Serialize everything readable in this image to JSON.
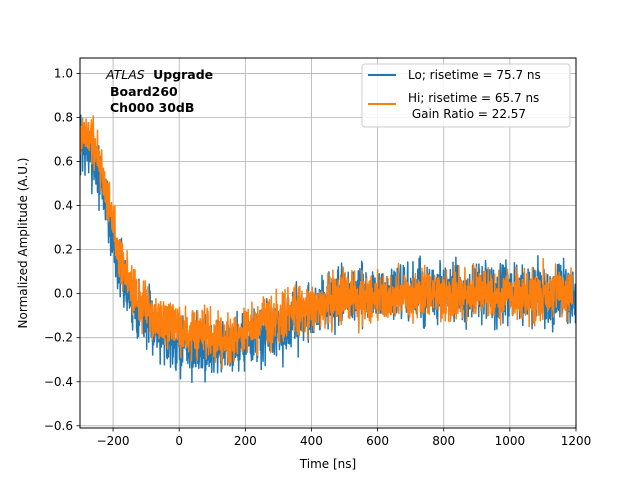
{
  "chart_data": {
    "type": "line",
    "xlabel": "Time [ns]",
    "ylabel": "Normalized Amplitude (A.U.)",
    "xlim": [
      -300,
      1200
    ],
    "ylim": [
      -0.61,
      1.07
    ],
    "xticks": [
      -200,
      0,
      200,
      400,
      600,
      800,
      1000,
      1200
    ],
    "yticks": [
      -0.6,
      -0.4,
      -0.2,
      0.0,
      0.2,
      0.4,
      0.6,
      0.8,
      1.0
    ],
    "xtick_labels": [
      "−200",
      "0",
      "200",
      "400",
      "600",
      "800",
      "1000",
      "1200"
    ],
    "ytick_labels": [
      "−0.6",
      "−0.4",
      "−0.2",
      "0.0",
      "0.2",
      "0.4",
      "0.6",
      "0.8",
      "1.0"
    ],
    "grid": true,
    "legend_position": "upper-right",
    "annotation": {
      "italic": "ATLAS",
      "bold": "Upgrade",
      "line2": "Board260",
      "line3": "Ch000 30dB"
    },
    "series": [
      {
        "name": "Lo; risetime = 75.7 ns",
        "color": "#1f77b4",
        "noise": 0.1,
        "envelope": [
          [
            -300,
            0.68
          ],
          [
            -260,
            0.62
          ],
          [
            -230,
            0.48
          ],
          [
            -210,
            0.32
          ],
          [
            -190,
            0.17
          ],
          [
            -160,
            0.02
          ],
          [
            -120,
            -0.08
          ],
          [
            -60,
            -0.16
          ],
          [
            0,
            -0.22
          ],
          [
            80,
            -0.25
          ],
          [
            150,
            -0.23
          ],
          [
            220,
            -0.2
          ],
          [
            300,
            -0.16
          ],
          [
            380,
            -0.09
          ],
          [
            450,
            -0.04
          ],
          [
            550,
            -0.01
          ],
          [
            700,
            0.0
          ],
          [
            900,
            0.0
          ],
          [
            1200,
            0.0
          ]
        ],
        "x_end": 1200,
        "seed": 7
      },
      {
        "name": "Hi; risetime = 65.7 ns",
        "name_line2": " Gain Ratio = 22.57",
        "color": "#ff7f0e",
        "noise": 0.085,
        "envelope": [
          [
            -300,
            0.72
          ],
          [
            -270,
            0.72
          ],
          [
            -240,
            0.6
          ],
          [
            -215,
            0.42
          ],
          [
            -190,
            0.25
          ],
          [
            -160,
            0.08
          ],
          [
            -120,
            -0.04
          ],
          [
            -60,
            -0.12
          ],
          [
            0,
            -0.17
          ],
          [
            80,
            -0.2
          ],
          [
            150,
            -0.19
          ],
          [
            220,
            -0.16
          ],
          [
            300,
            -0.12
          ],
          [
            380,
            -0.07
          ],
          [
            450,
            -0.03
          ],
          [
            550,
            -0.01
          ],
          [
            700,
            0.0
          ],
          [
            900,
            0.0
          ],
          [
            1200,
            0.0
          ]
        ],
        "x_end": 1190,
        "seed": 19
      }
    ]
  }
}
